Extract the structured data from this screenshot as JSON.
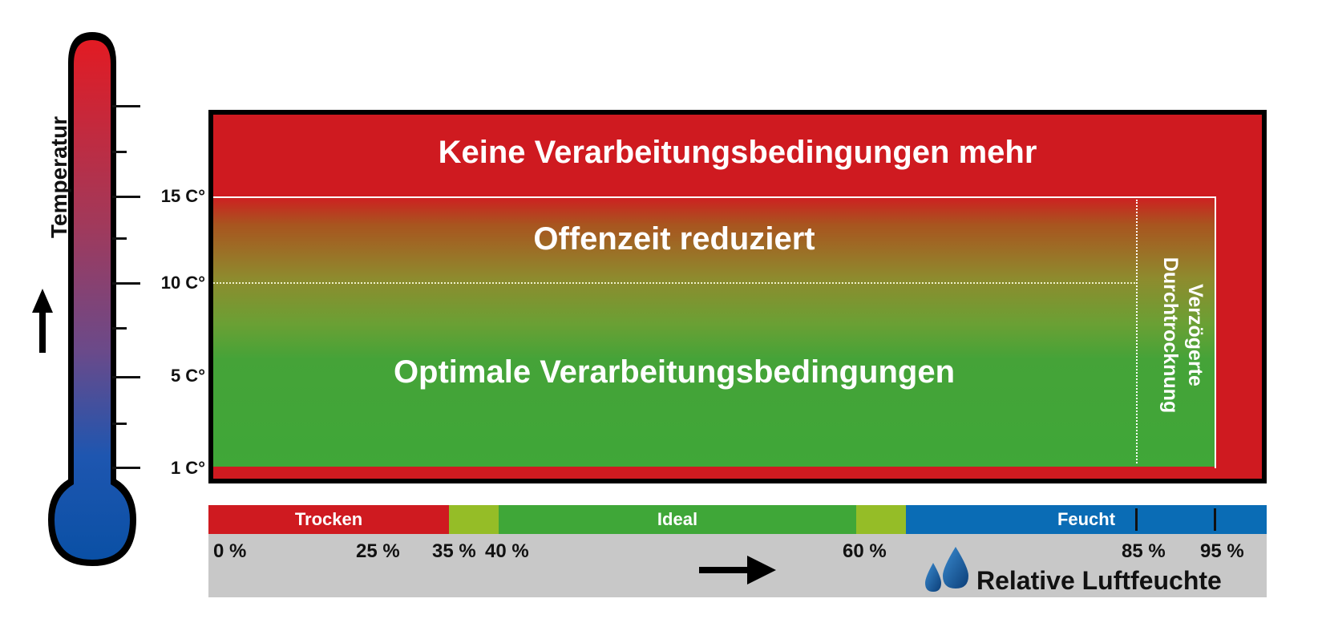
{
  "temperature_axis": {
    "title": "Temperatur",
    "labels": [
      "15 C°",
      "10 C°",
      "5 C°",
      "1 C°"
    ]
  },
  "zones": {
    "top": "Keine Verarbeitungsbedingungen mehr",
    "reduced": "Offenzeit reduziert",
    "optimal": "Optimale Verarbeitungsbedingungen",
    "delayed_line1": "Verzögerte",
    "delayed_line2": "Durchtrocknung"
  },
  "humidity_axis": {
    "title": "Relative Luftfeuchte",
    "segments": {
      "dry": "Trocken",
      "ideal": "Ideal",
      "humid": "Feucht"
    },
    "percent_labels": [
      "0 %",
      "25 %",
      "35 %",
      "40 %",
      "60 %",
      "85 %",
      "95 %"
    ]
  },
  "colors": {
    "red": "#cf1a20",
    "green": "#3fa738",
    "light_green": "#95bd27",
    "blue": "#0a6cb5",
    "grey": "#c8c8c8"
  }
}
